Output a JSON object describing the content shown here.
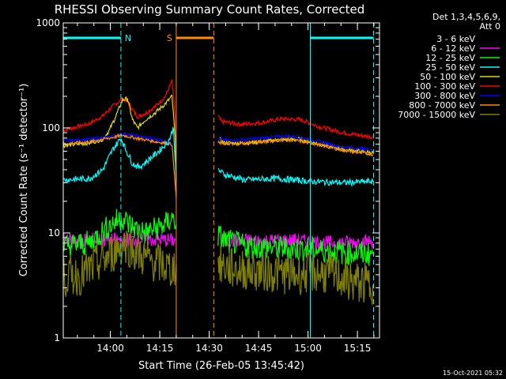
{
  "chart_data": {
    "type": "line",
    "title": "RHESSI Observing Summary Count Rates, Corrected",
    "xlabel": "Start Time (26-Feb-05 13:45:42)",
    "ylabel": "Corrected Count Rate (s⁻¹ detector⁻¹)",
    "footer": "15-Oct-2021 05:32",
    "x_units": "minutes after 13:45:42",
    "xlim": [
      0,
      96
    ],
    "ylim": [
      1,
      1000
    ],
    "yscale": "log",
    "x_ticks": [
      {
        "label": "14:00",
        "at": 14.3
      },
      {
        "label": "14:15",
        "at": 29.3
      },
      {
        "label": "14:30",
        "at": 44.3
      },
      {
        "label": "14:45",
        "at": 59.3
      },
      {
        "label": "15:00",
        "at": 74.3
      },
      {
        "label": "15:15",
        "at": 89.3
      }
    ],
    "y_ticks": [
      {
        "label": "1",
        "at": 1
      },
      {
        "label": "10",
        "at": 10
      },
      {
        "label": "100",
        "at": 100
      },
      {
        "label": "1000",
        "at": 1000
      }
    ],
    "legend": {
      "header": [
        "Det 1,3,4,5,6,9,",
        "Att 0"
      ],
      "placement": "right",
      "entries": [
        {
          "label": "3 - 6 keV",
          "color": "#000000"
        },
        {
          "label": "6 - 12 keV",
          "color": "#ff00ff"
        },
        {
          "label": "12 - 25 keV",
          "color": "#00ff00"
        },
        {
          "label": "25 - 50 keV",
          "color": "#00ffff"
        },
        {
          "label": "50 - 100 keV",
          "color": "#dddd00"
        },
        {
          "label": "100 - 300 keV",
          "color": "#ff0000"
        },
        {
          "label": "300 - 800 keV",
          "color": "#0000ff"
        },
        {
          "label": "800 - 7000 keV",
          "color": "#ff8c00"
        },
        {
          "label": "7000 - 15000 keV",
          "color": "#808000"
        }
      ]
    },
    "flags": [
      {
        "label": "N",
        "color": "#00ffff",
        "x_start": 0,
        "x_end": 17.5,
        "style": "solid"
      },
      {
        "label": "",
        "color": "#00ffff",
        "x_start": 75,
        "x_end": 94.2,
        "style": "solid"
      },
      {
        "label": "S",
        "color": "#ff8c00",
        "x_start": 34.3,
        "x_end": 45.7,
        "style": "solid"
      }
    ],
    "vlines": [
      {
        "x": 17.5,
        "color": "#00ffff",
        "style": "dashed"
      },
      {
        "x": 94.2,
        "color": "#00ffff",
        "style": "dashed"
      },
      {
        "x": 75,
        "color": "#00ffff",
        "style": "solid"
      },
      {
        "x": 34.3,
        "color": "#ff8c00",
        "style": "solid"
      },
      {
        "x": 45.7,
        "color": "#ff8c00",
        "style": "dashed"
      }
    ],
    "series": [
      {
        "name": "100 - 300 keV",
        "color": "#ff0000",
        "noise": 0.02,
        "segments": [
          [
            [
              0,
              95
            ],
            [
              8,
              110
            ],
            [
              12,
              130
            ],
            [
              15,
              160
            ],
            [
              18,
              190
            ],
            [
              19.5,
              180
            ],
            [
              21,
              150
            ],
            [
              22.5,
              128
            ],
            [
              25,
              138
            ],
            [
              28,
              160
            ],
            [
              31,
              200
            ],
            [
              33,
              280
            ],
            [
              34,
              130
            ],
            [
              34.3,
              30
            ]
          ],
          [
            [
              47,
              130
            ],
            [
              48,
              115
            ],
            [
              54,
              108
            ],
            [
              60,
              112
            ],
            [
              66,
              122
            ],
            [
              72,
              120
            ],
            [
              78,
              102
            ],
            [
              85,
              90
            ],
            [
              90,
              85
            ],
            [
              94,
              82
            ]
          ]
        ]
      },
      {
        "name": "50 - 100 keV",
        "color": "#dddd00",
        "noise": 0.02,
        "segments": [
          [
            [
              0,
              68
            ],
            [
              8,
              72
            ],
            [
              12,
              78
            ],
            [
              14,
              95
            ],
            [
              16,
              130
            ],
            [
              18,
              185
            ],
            [
              19.5,
              190
            ],
            [
              21,
              120
            ],
            [
              22.5,
              100
            ],
            [
              25,
              120
            ],
            [
              28,
              140
            ],
            [
              31,
              170
            ],
            [
              33,
              200
            ],
            [
              34,
              80
            ],
            [
              34.3,
              25
            ]
          ],
          [
            [
              47,
              80
            ],
            [
              49,
              72
            ],
            [
              56,
              72
            ],
            [
              64,
              76
            ],
            [
              72,
              78
            ],
            [
              78,
              70
            ],
            [
              86,
              62
            ],
            [
              94,
              58
            ]
          ]
        ]
      },
      {
        "name": "300 - 800 keV",
        "color": "#0000ff",
        "noise": 0.015,
        "segments": [
          [
            [
              0,
              75
            ],
            [
              8,
              78
            ],
            [
              14,
              82
            ],
            [
              18,
              88
            ],
            [
              22,
              84
            ],
            [
              28,
              78
            ],
            [
              33,
              73
            ],
            [
              34.3,
              20
            ]
          ],
          [
            [
              47,
              78
            ],
            [
              52,
              76
            ],
            [
              60,
              80
            ],
            [
              68,
              84
            ],
            [
              75,
              78
            ],
            [
              84,
              66
            ],
            [
              94,
              62
            ]
          ]
        ]
      },
      {
        "name": "800 - 7000 keV",
        "color": "#ff8c00",
        "noise": 0.015,
        "segments": [
          [
            [
              0,
              70
            ],
            [
              8,
              74
            ],
            [
              14,
              80
            ],
            [
              18,
              85
            ],
            [
              22,
              80
            ],
            [
              28,
              74
            ],
            [
              33,
              70
            ],
            [
              34.3,
              22
            ]
          ],
          [
            [
              47,
              72
            ],
            [
              52,
              70
            ],
            [
              60,
              74
            ],
            [
              68,
              78
            ],
            [
              75,
              72
            ],
            [
              84,
              62
            ],
            [
              94,
              56
            ]
          ]
        ]
      },
      {
        "name": "25 - 50 keV",
        "color": "#00ffff",
        "noise": 0.03,
        "segments": [
          [
            [
              0,
              32
            ],
            [
              8,
              33
            ],
            [
              12,
              40
            ],
            [
              15,
              62
            ],
            [
              17.5,
              80
            ],
            [
              19,
              62
            ],
            [
              21,
              46
            ],
            [
              23,
              42
            ],
            [
              26,
              50
            ],
            [
              29,
              60
            ],
            [
              32,
              75
            ],
            [
              33.5,
              100
            ],
            [
              34.3,
              30
            ]
          ],
          [
            [
              47,
              40
            ],
            [
              49,
              36
            ],
            [
              55,
              32
            ],
            [
              65,
              33
            ],
            [
              75,
              31
            ],
            [
              85,
              30
            ],
            [
              94,
              31
            ]
          ]
        ]
      },
      {
        "name": "6 - 12 keV",
        "color": "#ff00ff",
        "noise": 0.07,
        "segments": [
          [
            [
              0,
              8.5
            ],
            [
              10,
              8.6
            ],
            [
              17.5,
              8.5
            ],
            [
              25,
              8.7
            ],
            [
              34,
              8.5
            ]
          ],
          [
            [
              48,
              8.5
            ],
            [
              60,
              8.4
            ],
            [
              70,
              8.5
            ],
            [
              80,
              8.0
            ],
            [
              94,
              8.3
            ]
          ]
        ]
      },
      {
        "name": "12 - 25 keV",
        "color": "#00ff00",
        "noise": 0.12,
        "segments": [
          [
            [
              0,
              7.5
            ],
            [
              8,
              8
            ],
            [
              13,
              11
            ],
            [
              16,
              13
            ],
            [
              18,
              14
            ],
            [
              20,
              12
            ],
            [
              22,
              11
            ],
            [
              25,
              10
            ],
            [
              28,
              11
            ],
            [
              31,
              12
            ],
            [
              33,
              14
            ],
            [
              34.3,
              12
            ]
          ],
          [
            [
              47,
              9.5
            ],
            [
              49,
              8.5
            ],
            [
              55,
              7.5
            ],
            [
              65,
              7.2
            ],
            [
              75,
              7
            ],
            [
              85,
              6.5
            ],
            [
              94,
              6.3
            ]
          ]
        ]
      },
      {
        "name": "7000 - 15000 keV",
        "color": "#808000",
        "noise": 0.2,
        "segments": [
          [
            [
              0,
              3.8
            ],
            [
              6,
              4
            ],
            [
              10,
              5
            ],
            [
              14,
              6
            ],
            [
              17,
              7.5
            ],
            [
              19,
              8
            ],
            [
              22,
              6.5
            ],
            [
              26,
              5.5
            ],
            [
              30,
              5
            ],
            [
              33,
              4.5
            ],
            [
              34.3,
              5
            ]
          ],
          [
            [
              47,
              5
            ],
            [
              52,
              4.5
            ],
            [
              58,
              4.4
            ],
            [
              64,
              4.2
            ],
            [
              70,
              4.0
            ],
            [
              76,
              4.2
            ],
            [
              82,
              4.0
            ],
            [
              88,
              3.4
            ],
            [
              94,
              3.2
            ]
          ]
        ]
      },
      {
        "name": "3 - 6 keV",
        "color": "#000000",
        "noise": 0,
        "segments": []
      }
    ]
  }
}
